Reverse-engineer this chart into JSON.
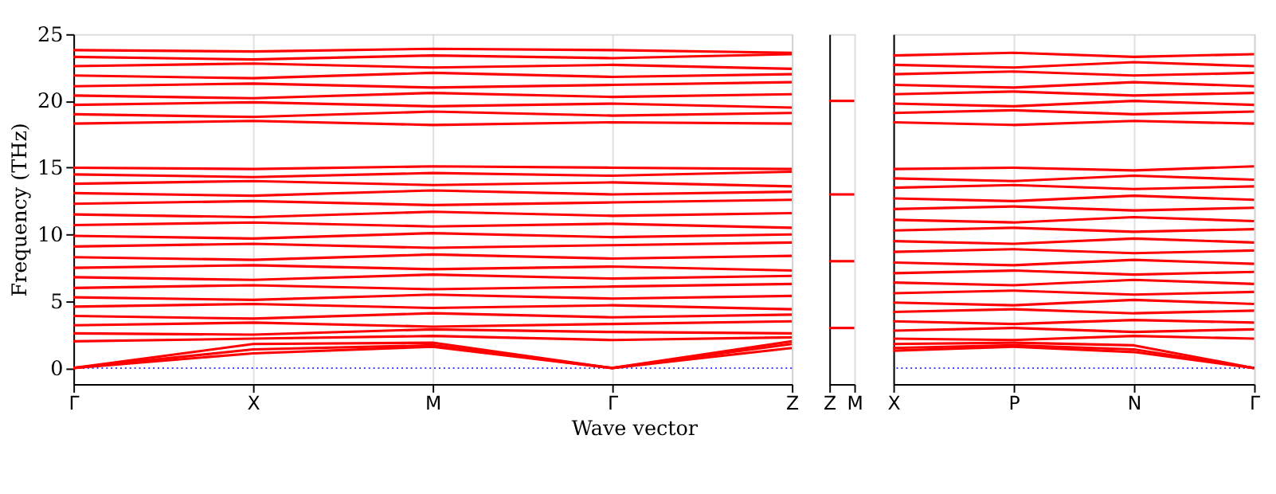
{
  "chart_data": [
    {
      "type": "line",
      "ylabel": "Frequency (THz)",
      "xlabel": "Wave vector",
      "categories": [
        "Γ",
        "X",
        "M",
        "Γ",
        "Z"
      ],
      "ylim": [
        -1.2,
        25
      ],
      "yticks": [
        0,
        5,
        10,
        15,
        20,
        25
      ],
      "grid": "x",
      "legend": false,
      "line_style": "solid",
      "marker": "none",
      "ref_lines": [
        {
          "axis": "y",
          "value": 0,
          "color": "#0000ff",
          "line_style": "dotted"
        }
      ],
      "series": [
        {
          "color": "#ff0000",
          "values": [
            0,
            1.1,
            1.6,
            0,
            1.5
          ]
        },
        {
          "color": "#ff0000",
          "values": [
            0,
            1.4,
            1.7,
            0,
            1.8
          ]
        },
        {
          "color": "#ff0000",
          "values": [
            0,
            1.8,
            1.9,
            0,
            2.0
          ]
        },
        {
          "color": "#ff0000",
          "values": [
            2.0,
            2.2,
            2.4,
            2.1,
            2.3
          ]
        },
        {
          "color": "#ff0000",
          "values": [
            2.6,
            2.5,
            2.9,
            2.7,
            2.6
          ]
        },
        {
          "color": "#ff0000",
          "values": [
            3.2,
            3.4,
            3.1,
            3.3,
            3.5
          ]
        },
        {
          "color": "#ff0000",
          "values": [
            3.9,
            3.7,
            4.1,
            3.8,
            4.0
          ]
        },
        {
          "color": "#ff0000",
          "values": [
            4.6,
            4.8,
            4.5,
            4.7,
            4.4
          ]
        },
        {
          "color": "#ff0000",
          "values": [
            5.3,
            5.1,
            5.5,
            5.2,
            5.4
          ]
        },
        {
          "color": "#ff0000",
          "values": [
            6.0,
            6.2,
            5.9,
            6.1,
            6.3
          ]
        },
        {
          "color": "#ff0000",
          "values": [
            6.8,
            6.6,
            7.0,
            6.7,
            6.9
          ]
        },
        {
          "color": "#ff0000",
          "values": [
            7.5,
            7.7,
            7.4,
            7.6,
            7.3
          ]
        },
        {
          "color": "#ff0000",
          "values": [
            8.3,
            8.1,
            8.5,
            8.2,
            8.4
          ]
        },
        {
          "color": "#ff0000",
          "values": [
            9.1,
            9.3,
            9.0,
            9.2,
            9.4
          ]
        },
        {
          "color": "#ff0000",
          "values": [
            9.9,
            9.7,
            10.1,
            9.8,
            10.0
          ]
        },
        {
          "color": "#ff0000",
          "values": [
            10.7,
            10.9,
            10.6,
            10.8,
            10.5
          ]
        },
        {
          "color": "#ff0000",
          "values": [
            11.5,
            11.3,
            11.7,
            11.4,
            11.6
          ]
        },
        {
          "color": "#ff0000",
          "values": [
            12.3,
            12.5,
            12.2,
            12.4,
            12.6
          ]
        },
        {
          "color": "#ff0000",
          "values": [
            13.1,
            12.9,
            13.3,
            13.0,
            13.2
          ]
        },
        {
          "color": "#ff0000",
          "values": [
            13.8,
            14.0,
            13.7,
            13.9,
            13.6
          ]
        },
        {
          "color": "#ff0000",
          "values": [
            14.5,
            14.3,
            14.6,
            14.4,
            14.7
          ]
        },
        {
          "color": "#ff0000",
          "values": [
            15.0,
            14.9,
            15.1,
            15.0,
            14.9
          ]
        },
        {
          "color": "#ff0000",
          "values": [
            18.3,
            18.5,
            18.2,
            18.4,
            18.3
          ]
        },
        {
          "color": "#ff0000",
          "values": [
            19.0,
            18.8,
            19.2,
            18.9,
            19.1
          ]
        },
        {
          "color": "#ff0000",
          "values": [
            19.7,
            19.9,
            19.6,
            19.8,
            19.5
          ]
        },
        {
          "color": "#ff0000",
          "values": [
            20.4,
            20.2,
            20.6,
            20.3,
            20.5
          ]
        },
        {
          "color": "#ff0000",
          "values": [
            21.1,
            21.3,
            21.0,
            21.2,
            21.4
          ]
        },
        {
          "color": "#ff0000",
          "values": [
            21.9,
            21.7,
            22.1,
            21.8,
            22.0
          ]
        },
        {
          "color": "#ff0000",
          "values": [
            22.6,
            22.8,
            22.5,
            22.7,
            22.4
          ]
        },
        {
          "color": "#ff0000",
          "values": [
            23.3,
            23.1,
            23.4,
            23.2,
            23.5
          ]
        },
        {
          "color": "#ff0000",
          "values": [
            23.8,
            23.7,
            23.9,
            23.8,
            23.6
          ]
        }
      ]
    },
    {
      "type": "line",
      "categories": [
        "Z",
        "M"
      ],
      "ylim": [
        -1.2,
        25
      ],
      "yticks": [
        0,
        5,
        10,
        15,
        20,
        25
      ],
      "legend": false,
      "tick_labels": "x",
      "line_style": "solid",
      "marker": "none",
      "series": [
        {
          "color": "#ff0000",
          "values": [
            3.0,
            3.0
          ]
        },
        {
          "color": "#ff0000",
          "values": [
            8.0,
            8.0
          ]
        },
        {
          "color": "#ff0000",
          "values": [
            13.0,
            13.0
          ]
        },
        {
          "color": "#ff0000",
          "values": [
            20.0,
            20.0
          ]
        }
      ]
    },
    {
      "type": "line",
      "categories": [
        "X",
        "P",
        "N",
        "Γ"
      ],
      "ylim": [
        -1.2,
        25
      ],
      "yticks": [
        0,
        5,
        10,
        15,
        20,
        25
      ],
      "grid": "x",
      "legend": false,
      "tick_labels": "x",
      "line_style": "solid",
      "marker": "none",
      "ref_lines": [
        {
          "axis": "y",
          "value": 0,
          "color": "#0000ff",
          "line_style": "dotted"
        }
      ],
      "series": [
        {
          "color": "#ff0000",
          "values": [
            1.3,
            1.6,
            1.2,
            0
          ]
        },
        {
          "color": "#ff0000",
          "values": [
            1.5,
            1.7,
            1.4,
            0
          ]
        },
        {
          "color": "#ff0000",
          "values": [
            1.8,
            1.9,
            1.7,
            0
          ]
        },
        {
          "color": "#ff0000",
          "values": [
            2.2,
            2.1,
            2.4,
            2.2
          ]
        },
        {
          "color": "#ff0000",
          "values": [
            2.8,
            3.0,
            2.7,
            2.9
          ]
        },
        {
          "color": "#ff0000",
          "values": [
            3.5,
            3.3,
            3.6,
            3.4
          ]
        },
        {
          "color": "#ff0000",
          "values": [
            4.2,
            4.4,
            4.1,
            4.3
          ]
        },
        {
          "color": "#ff0000",
          "values": [
            4.9,
            4.7,
            5.1,
            4.8
          ]
        },
        {
          "color": "#ff0000",
          "values": [
            5.6,
            5.8,
            5.5,
            5.7
          ]
        },
        {
          "color": "#ff0000",
          "values": [
            6.4,
            6.2,
            6.6,
            6.3
          ]
        },
        {
          "color": "#ff0000",
          "values": [
            7.1,
            7.3,
            7.0,
            7.2
          ]
        },
        {
          "color": "#ff0000",
          "values": [
            7.9,
            7.7,
            8.1,
            7.8
          ]
        },
        {
          "color": "#ff0000",
          "values": [
            8.7,
            8.9,
            8.6,
            8.8
          ]
        },
        {
          "color": "#ff0000",
          "values": [
            9.5,
            9.3,
            9.7,
            9.4
          ]
        },
        {
          "color": "#ff0000",
          "values": [
            10.3,
            10.5,
            10.2,
            10.4
          ]
        },
        {
          "color": "#ff0000",
          "values": [
            11.1,
            10.9,
            11.3,
            11.0
          ]
        },
        {
          "color": "#ff0000",
          "values": [
            11.9,
            12.1,
            11.8,
            12.0
          ]
        },
        {
          "color": "#ff0000",
          "values": [
            12.7,
            12.5,
            12.9,
            12.6
          ]
        },
        {
          "color": "#ff0000",
          "values": [
            13.5,
            13.7,
            13.4,
            13.6
          ]
        },
        {
          "color": "#ff0000",
          "values": [
            14.2,
            14.0,
            14.4,
            14.1
          ]
        },
        {
          "color": "#ff0000",
          "values": [
            14.9,
            15.0,
            14.8,
            15.1
          ]
        },
        {
          "color": "#ff0000",
          "values": [
            18.4,
            18.2,
            18.5,
            18.3
          ]
        },
        {
          "color": "#ff0000",
          "values": [
            19.1,
            19.3,
            19.0,
            19.2
          ]
        },
        {
          "color": "#ff0000",
          "values": [
            19.8,
            19.6,
            20.0,
            19.7
          ]
        },
        {
          "color": "#ff0000",
          "values": [
            20.5,
            20.7,
            20.4,
            20.6
          ]
        },
        {
          "color": "#ff0000",
          "values": [
            21.2,
            21.0,
            21.4,
            21.1
          ]
        },
        {
          "color": "#ff0000",
          "values": [
            22.0,
            22.2,
            21.9,
            22.1
          ]
        },
        {
          "color": "#ff0000",
          "values": [
            22.7,
            22.5,
            22.9,
            22.6
          ]
        },
        {
          "color": "#ff0000",
          "values": [
            23.4,
            23.6,
            23.3,
            23.5
          ]
        }
      ]
    }
  ]
}
